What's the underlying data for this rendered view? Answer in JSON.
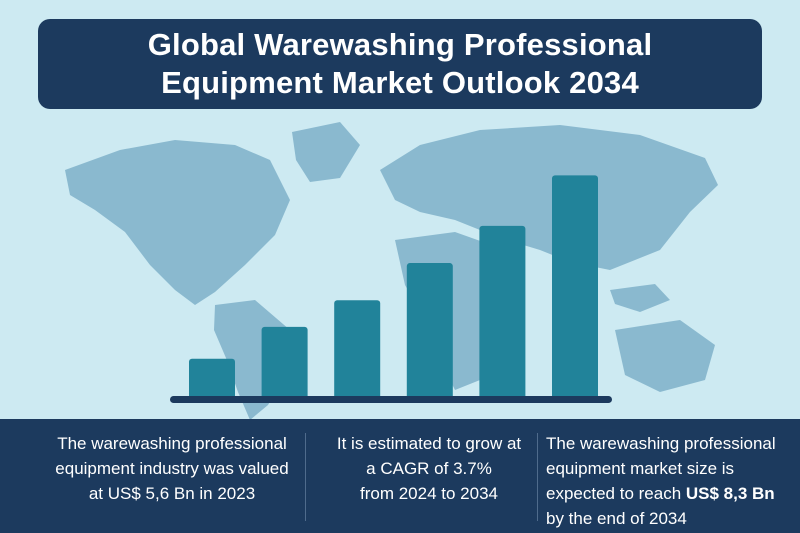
{
  "colors": {
    "background": "#cdeaf2",
    "map": "#8ab9cf",
    "banner": "#1c3a5e",
    "bar": "#21839a",
    "baseline": "#1c3a5e"
  },
  "title": {
    "line1": "Global Warewashing Professional",
    "line2": "Equipment Market Outlook 2034"
  },
  "stats": {
    "valued": {
      "line1": "The warewashing professional",
      "line2": "equipment industry was valued",
      "line3_prefix": "at ",
      "line3_value": "US$ 5,6 Bn in 2023"
    },
    "cagr": {
      "line1": "It is estimated to grow at",
      "line2": "a CAGR of 3.7%",
      "line3": "from 2024 to 2034"
    },
    "forecast": {
      "line1": "The warewashing professional",
      "line2": "equipment market size is",
      "line3_prefix": "expected to reach ",
      "line3_value": "US$ 8,3 Bn",
      "line4": "by the end of 2034"
    }
  },
  "chart_data": {
    "type": "bar",
    "title": "",
    "xlabel": "",
    "ylabel": "",
    "values": [
      1.4,
      2.6,
      3.6,
      5.0,
      6.4,
      8.3
    ],
    "ylim": [
      0,
      8.5
    ],
    "grid": false,
    "legend": "none"
  }
}
